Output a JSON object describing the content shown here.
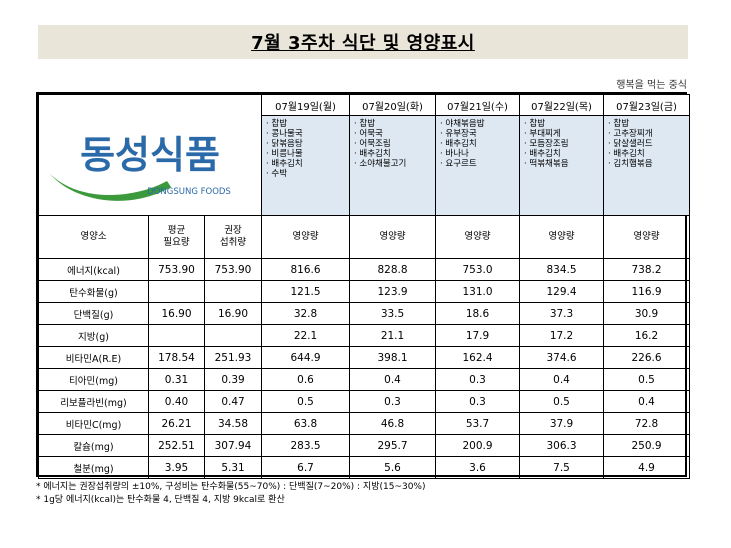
{
  "title": "7월 3주차 식단 및 영양표시",
  "slogan": "행복을 먹는 중식",
  "logo": {
    "korean": "동성식품",
    "english": "DONGSUNG FOODS",
    "colors": {
      "text": "#2a6aa8",
      "swoosh": "#3c9a3c"
    }
  },
  "days": [
    {
      "date": "07월19일(월)",
      "menu": [
        "· 찹밥",
        "· 콩나물국",
        "· 닭볶음탕",
        "· 비름나물",
        "· 배추김치",
        "· 수박"
      ]
    },
    {
      "date": "07월20일(화)",
      "menu": [
        "· 찹밥",
        "· 어묵국",
        "· 어묵조림",
        "· 배추김치",
        "· 소야채불고기"
      ]
    },
    {
      "date": "07월21일(수)",
      "menu": [
        "· 야채볶음밥",
        "· 유부장국",
        "· 배추김치",
        "· 바나나",
        "· 요구르트"
      ]
    },
    {
      "date": "07월22일(목)",
      "menu": [
        "· 찹밥",
        "· 부대찌게",
        "· 모듬장조림",
        "· 배추김치",
        "· 떡볶채볶음"
      ]
    },
    {
      "date": "07월23일(금)",
      "menu": [
        "· 찹밥",
        "· 고추장찌개",
        "· 닭살샐러드",
        "· 배추김치",
        "· 김치햄볶음"
      ]
    }
  ],
  "header": {
    "nutrient": "영양소",
    "avg_line1": "평균",
    "avg_line2": "필요량",
    "rec_line1": "권장",
    "rec_line2": "섭취량",
    "amount": "영양량"
  },
  "rows": [
    {
      "name": "에너지(kcal)",
      "avg": "753.90",
      "rec": "753.90",
      "values": [
        "816.6",
        "828.8",
        "753.0",
        "834.5",
        "738.2"
      ]
    },
    {
      "name": "탄수화물(g)",
      "avg": "",
      "rec": "",
      "values": [
        "121.5",
        "123.9",
        "131.0",
        "129.4",
        "116.9"
      ]
    },
    {
      "name": "단백질(g)",
      "avg": "16.90",
      "rec": "16.90",
      "values": [
        "32.8",
        "33.5",
        "18.6",
        "37.3",
        "30.9"
      ]
    },
    {
      "name": "지방(g)",
      "avg": "",
      "rec": "",
      "values": [
        "22.1",
        "21.1",
        "17.9",
        "17.2",
        "16.2"
      ]
    },
    {
      "name": "비타민A(R.E)",
      "avg": "178.54",
      "rec": "251.93",
      "values": [
        "644.9",
        "398.1",
        "162.4",
        "374.6",
        "226.6"
      ]
    },
    {
      "name": "티아민(mg)",
      "avg": "0.31",
      "rec": "0.39",
      "values": [
        "0.6",
        "0.4",
        "0.3",
        "0.4",
        "0.5"
      ]
    },
    {
      "name": "리보플라빈(mg)",
      "avg": "0.40",
      "rec": "0.47",
      "values": [
        "0.5",
        "0.3",
        "0.3",
        "0.5",
        "0.4"
      ]
    },
    {
      "name": "비타민C(mg)",
      "avg": "26.21",
      "rec": "34.58",
      "values": [
        "63.8",
        "46.8",
        "53.7",
        "37.9",
        "72.8"
      ]
    },
    {
      "name": "칼슘(mg)",
      "avg": "252.51",
      "rec": "307.94",
      "values": [
        "283.5",
        "295.7",
        "200.9",
        "306.3",
        "250.9"
      ]
    },
    {
      "name": "철분(mg)",
      "avg": "3.95",
      "rec": "5.31",
      "values": [
        "6.7",
        "5.6",
        "3.6",
        "7.5",
        "4.9"
      ]
    }
  ],
  "notes": [
    "* 에너지는 권장섭취량의 ±10%, 구성비는 탄수화물(55~70%) : 단백질(7~20%) : 지방(15~30%)",
    "* 1g당 에너지(kcal)는 탄수화물 4, 단백질 4, 지방 9kcal로 환산"
  ]
}
